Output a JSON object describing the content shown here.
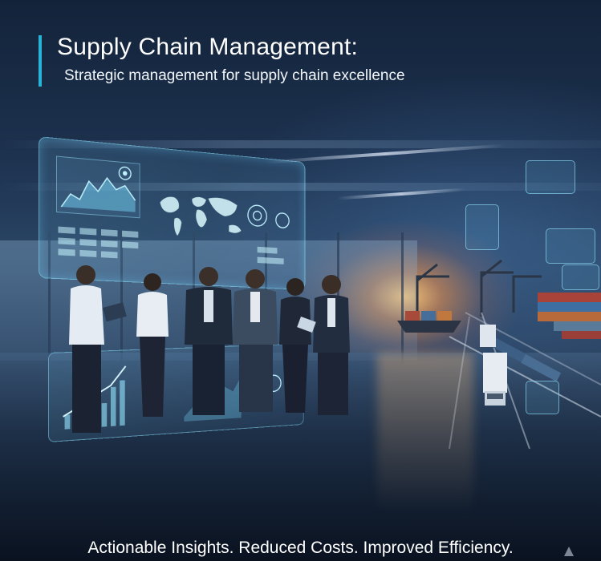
{
  "header": {
    "title": "Supply Chain Management:",
    "subtitle": "Strategic management for supply chain excellence"
  },
  "footer": {
    "tagline": "Actionable Insights. Reduced Costs. Improved Efficiency."
  },
  "scene": {
    "accent_color": "#29b3d6",
    "holo_color": "#8ee6ff",
    "sunlight_color": "#ffc27a",
    "icons": [
      "world-map-icon",
      "line-chart-icon",
      "bar-chart-icon",
      "gear-icon",
      "crane-icon",
      "truck-icon",
      "ship-icon"
    ]
  }
}
